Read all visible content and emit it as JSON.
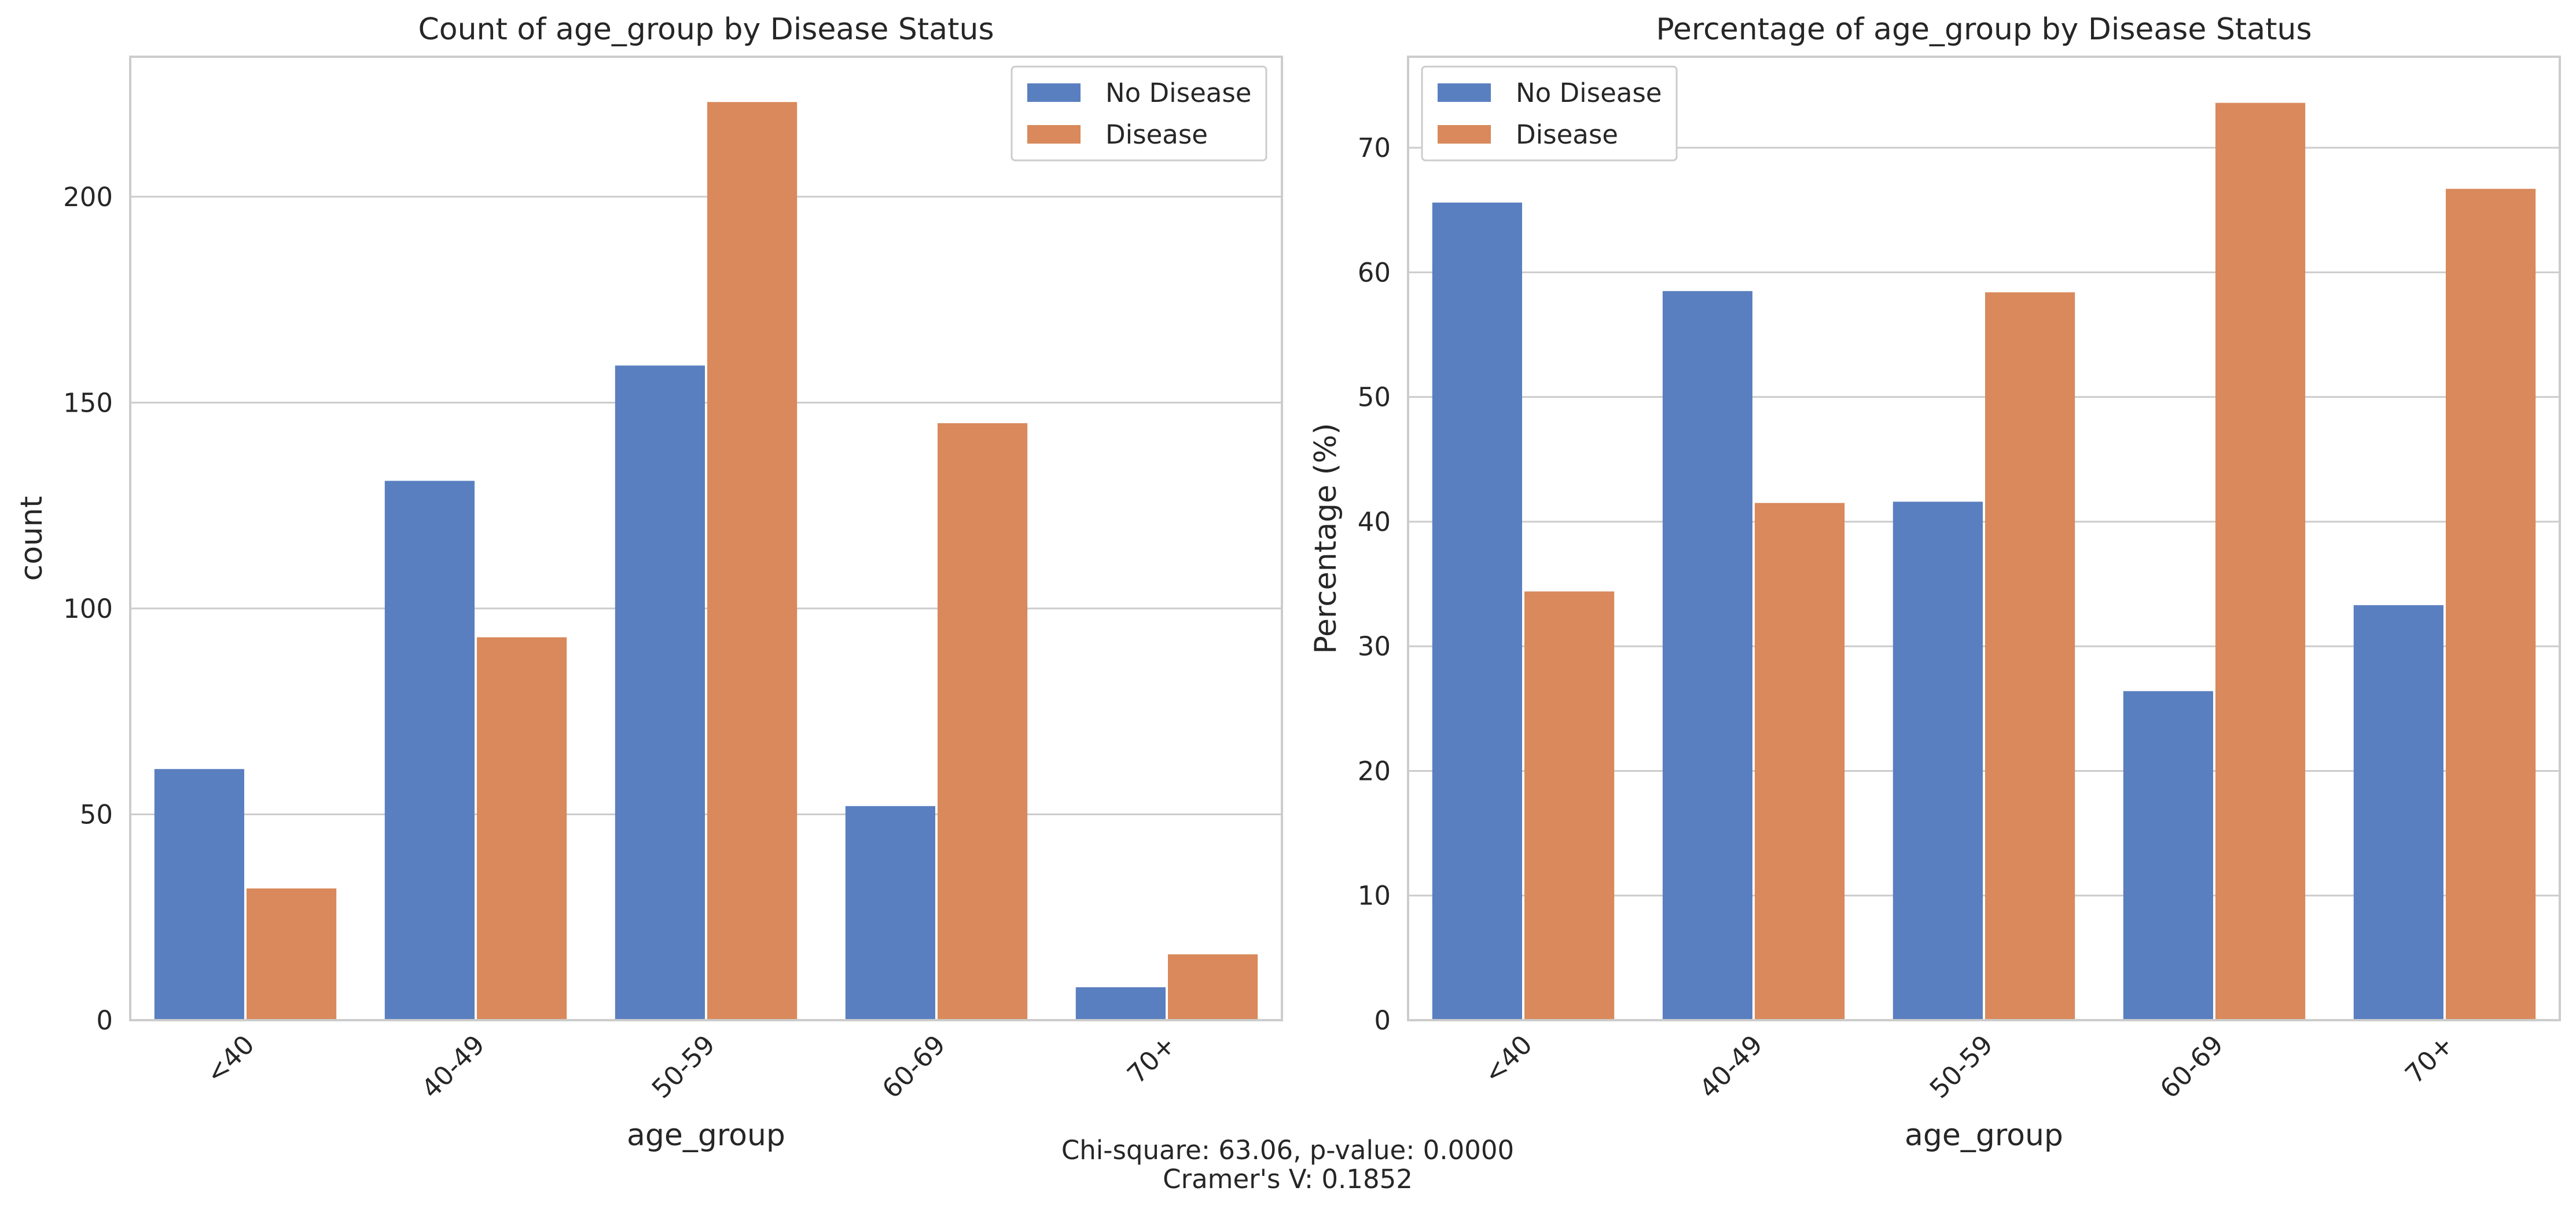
{
  "chart_data": [
    {
      "type": "bar",
      "title": "Count of age_group by Disease Status",
      "xlabel": "age_group",
      "ylabel": "count",
      "categories": [
        "<40",
        "40-49",
        "50-59",
        "60-69",
        "70+"
      ],
      "series": [
        {
          "name": "No Disease",
          "values": [
            61,
            131,
            159,
            52,
            8
          ],
          "color": "#5a7fc0"
        },
        {
          "name": "Disease",
          "values": [
            32,
            93,
            223,
            145,
            16
          ],
          "color": "#d9895b"
        }
      ],
      "ylim": [
        0,
        234
      ],
      "yticks": [
        0,
        50,
        100,
        150,
        200
      ],
      "grid": true,
      "legend_position": "top-right"
    },
    {
      "type": "bar",
      "title": "Percentage of age_group by Disease Status",
      "xlabel": "age_group",
      "ylabel": "Percentage (%)",
      "categories": [
        "<40",
        "40-49",
        "50-59",
        "60-69",
        "70+"
      ],
      "series": [
        {
          "name": "No Disease",
          "values": [
            65.6,
            58.5,
            41.6,
            26.4,
            33.3
          ],
          "color": "#5a7fc0"
        },
        {
          "name": "Disease",
          "values": [
            34.4,
            41.5,
            58.4,
            73.6,
            66.7
          ],
          "color": "#d9895b"
        }
      ],
      "ylim": [
        0,
        77.3
      ],
      "yticks": [
        0,
        10,
        20,
        30,
        40,
        50,
        60,
        70
      ],
      "grid": true,
      "legend_position": "top-left"
    }
  ],
  "footer": {
    "line1": "Chi-square: 63.06, p-value: 0.0000",
    "line2": "Cramer's V: 0.1852"
  }
}
